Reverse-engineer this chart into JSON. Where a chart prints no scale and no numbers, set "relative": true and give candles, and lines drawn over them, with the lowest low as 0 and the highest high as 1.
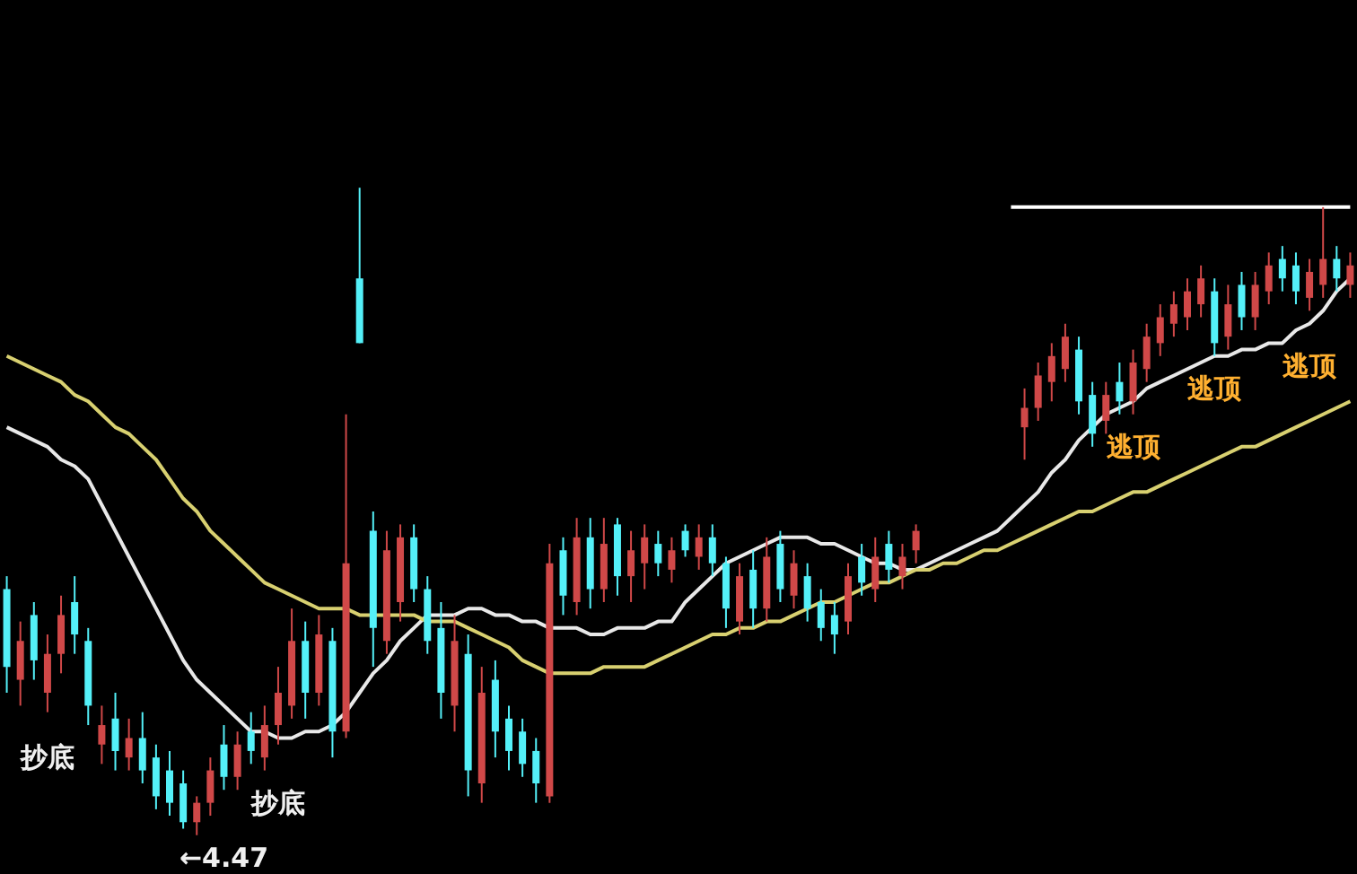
{
  "chart_data": {
    "type": "candlestick",
    "relative": true,
    "categories": [
      null,
      null,
      null,
      null,
      null,
      null,
      null,
      null,
      null,
      null,
      null,
      null,
      null,
      null,
      null,
      null,
      null,
      null,
      null,
      null,
      null,
      null,
      null,
      null,
      null,
      null,
      null,
      null,
      null,
      null,
      null,
      null,
      null,
      null,
      null,
      null,
      null,
      null,
      null,
      null,
      null,
      null,
      null,
      null,
      null,
      null,
      null,
      null,
      null,
      null,
      null,
      null,
      null,
      null,
      null,
      null,
      null,
      null,
      null,
      null,
      null,
      null,
      null,
      null,
      null,
      null,
      null,
      null,
      null,
      null,
      null,
      null,
      null,
      null,
      null,
      null,
      null,
      null,
      null,
      null,
      null,
      null,
      null,
      null,
      null,
      null,
      null,
      null,
      null,
      null,
      null,
      null,
      null,
      null,
      null,
      null,
      null,
      null,
      null,
      null
    ],
    "ohlc": [
      [
        0.38,
        0.4,
        0.22,
        0.26
      ],
      [
        0.24,
        0.33,
        0.2,
        0.3
      ],
      [
        0.34,
        0.36,
        0.24,
        0.27
      ],
      [
        0.22,
        0.31,
        0.19,
        0.28
      ],
      [
        0.28,
        0.37,
        0.25,
        0.34
      ],
      [
        0.36,
        0.4,
        0.28,
        0.31
      ],
      [
        0.3,
        0.32,
        0.17,
        0.2
      ],
      [
        0.14,
        0.2,
        0.11,
        0.17
      ],
      [
        0.18,
        0.22,
        0.1,
        0.13
      ],
      [
        0.12,
        0.18,
        0.1,
        0.15
      ],
      [
        0.15,
        0.19,
        0.08,
        0.1
      ],
      [
        0.12,
        0.14,
        0.04,
        0.06
      ],
      [
        0.1,
        0.13,
        0.03,
        0.05
      ],
      [
        0.08,
        0.1,
        0.01,
        0.02
      ],
      [
        0.02,
        0.06,
        0,
        0.05
      ],
      [
        0.05,
        0.12,
        0.03,
        0.1
      ],
      [
        0.14,
        0.17,
        0.07,
        0.09
      ],
      [
        0.09,
        0.16,
        0.07,
        0.14
      ],
      [
        0.16,
        0.19,
        0.11,
        0.13
      ],
      [
        0.12,
        0.2,
        0.1,
        0.17
      ],
      [
        0.17,
        0.26,
        0.14,
        0.22
      ],
      [
        0.2,
        0.35,
        0.18,
        0.3
      ],
      [
        0.3,
        0.33,
        0.18,
        0.22
      ],
      [
        0.22,
        0.34,
        0.2,
        0.31
      ],
      [
        0.3,
        0.32,
        0.12,
        0.16
      ],
      [
        0.16,
        0.65,
        0.15,
        0.42
      ],
      [
        0.86,
        1,
        0.76,
        0.76
      ],
      [
        0.47,
        0.5,
        0.26,
        0.32
      ],
      [
        0.3,
        0.47,
        0.28,
        0.44
      ],
      [
        0.36,
        0.48,
        0.33,
        0.46
      ],
      [
        0.46,
        0.48,
        0.36,
        0.38
      ],
      [
        0.38,
        0.4,
        0.28,
        0.3
      ],
      [
        0.32,
        0.36,
        0.18,
        0.22
      ],
      [
        0.2,
        0.34,
        0.16,
        0.3
      ],
      [
        0.28,
        0.31,
        0.06,
        0.1
      ],
      [
        0.08,
        0.26,
        0.05,
        0.22
      ],
      [
        0.24,
        0.27,
        0.12,
        0.16
      ],
      [
        0.18,
        0.2,
        0.1,
        0.13
      ],
      [
        0.16,
        0.18,
        0.09,
        0.11
      ],
      [
        0.13,
        0.15,
        0.05,
        0.08
      ],
      [
        0.06,
        0.45,
        0.05,
        0.42
      ],
      [
        0.44,
        0.46,
        0.34,
        0.37
      ],
      [
        0.36,
        0.49,
        0.34,
        0.46
      ],
      [
        0.46,
        0.49,
        0.35,
        0.38
      ],
      [
        0.38,
        0.49,
        0.36,
        0.45
      ],
      [
        0.48,
        0.49,
        0.37,
        0.4
      ],
      [
        0.4,
        0.47,
        0.36,
        0.44
      ],
      [
        0.42,
        0.48,
        0.38,
        0.46
      ],
      [
        0.45,
        0.47,
        0.4,
        0.42
      ],
      [
        0.41,
        0.46,
        0.39,
        0.44
      ],
      [
        0.47,
        0.48,
        0.43,
        0.44
      ],
      [
        0.43,
        0.48,
        0.41,
        0.46
      ],
      [
        0.46,
        0.48,
        0.4,
        0.42
      ],
      [
        0.42,
        0.43,
        0.32,
        0.35
      ],
      [
        0.33,
        0.42,
        0.31,
        0.4
      ],
      [
        0.41,
        0.44,
        0.32,
        0.35
      ],
      [
        0.35,
        0.46,
        0.33,
        0.43
      ],
      [
        0.45,
        0.47,
        0.36,
        0.38
      ],
      [
        0.37,
        0.44,
        0.35,
        0.42
      ],
      [
        0.4,
        0.42,
        0.33,
        0.35
      ],
      [
        0.36,
        0.38,
        0.3,
        0.32
      ],
      [
        0.34,
        0.36,
        0.28,
        0.31
      ],
      [
        0.33,
        0.42,
        0.31,
        0.4
      ],
      [
        0.43,
        0.45,
        0.37,
        0.39
      ],
      [
        0.38,
        0.46,
        0.36,
        0.43
      ],
      [
        0.45,
        0.47,
        0.39,
        0.41
      ],
      [
        0.4,
        0.45,
        0.38,
        0.43
      ],
      [
        0.44,
        0.48,
        0.42,
        0.47
      ],
      null,
      null,
      null,
      null,
      null,
      null,
      null,
      [
        0.63,
        0.69,
        0.58,
        0.66
      ],
      [
        0.66,
        0.73,
        0.64,
        0.71
      ],
      [
        0.7,
        0.76,
        0.67,
        0.74
      ],
      [
        0.72,
        0.79,
        0.7,
        0.77
      ],
      [
        0.75,
        0.77,
        0.65,
        0.67
      ],
      [
        0.68,
        0.7,
        0.6,
        0.62
      ],
      [
        0.64,
        0.7,
        0.62,
        0.68
      ],
      [
        0.7,
        0.73,
        0.65,
        0.67
      ],
      [
        0.67,
        0.75,
        0.65,
        0.73
      ],
      [
        0.72,
        0.79,
        0.7,
        0.77
      ],
      [
        0.76,
        0.82,
        0.74,
        0.8
      ],
      [
        0.79,
        0.84,
        0.77,
        0.82
      ],
      [
        0.8,
        0.86,
        0.78,
        0.84
      ],
      [
        0.82,
        0.88,
        0.8,
        0.86
      ],
      [
        0.84,
        0.86,
        0.74,
        0.76
      ],
      [
        0.77,
        0.85,
        0.75,
        0.82
      ],
      [
        0.85,
        0.87,
        0.78,
        0.8
      ],
      [
        0.8,
        0.87,
        0.78,
        0.85
      ],
      [
        0.84,
        0.9,
        0.82,
        0.88
      ],
      [
        0.89,
        0.91,
        0.84,
        0.86
      ],
      [
        0.88,
        0.9,
        0.82,
        0.84
      ],
      [
        0.83,
        0.89,
        0.81,
        0.87
      ],
      [
        0.85,
        0.97,
        0.83,
        0.89
      ],
      [
        0.89,
        0.91,
        0.84,
        0.86
      ],
      [
        0.85,
        0.9,
        0.83,
        0.88
      ]
    ],
    "series": [
      {
        "type": "line",
        "color": "#e8e8e8",
        "values": [
          0.63,
          0.62,
          0.61,
          0.6,
          0.58,
          0.57,
          0.55,
          0.51,
          0.47,
          0.43,
          0.39,
          0.35,
          0.31,
          0.27,
          0.24,
          0.22,
          0.2,
          0.18,
          0.16,
          0.16,
          0.15,
          0.15,
          0.16,
          0.16,
          0.17,
          0.19,
          0.22,
          0.25,
          0.27,
          0.3,
          0.32,
          0.34,
          0.34,
          0.34,
          0.35,
          0.35,
          0.34,
          0.34,
          0.33,
          0.33,
          0.32,
          0.32,
          0.32,
          0.31,
          0.31,
          0.32,
          0.32,
          0.32,
          0.33,
          0.33,
          0.36,
          0.38,
          0.4,
          0.42,
          0.43,
          0.44,
          0.45,
          0.46,
          0.46,
          0.46,
          0.45,
          0.45,
          0.44,
          0.43,
          0.42,
          0.42,
          0.41,
          0.41,
          0.42,
          0.43,
          0.44,
          0.45,
          0.46,
          0.47,
          0.49,
          0.51,
          0.53,
          0.56,
          0.58,
          0.61,
          0.63,
          0.65,
          0.66,
          0.67,
          0.69,
          0.7,
          0.71,
          0.72,
          0.73,
          0.74,
          0.74,
          0.75,
          0.75,
          0.76,
          0.76,
          0.78,
          0.79,
          0.81,
          0.84,
          0.86
        ]
      },
      {
        "type": "line",
        "color": "#d8d070",
        "values": [
          0.74,
          0.73,
          0.72,
          0.71,
          0.7,
          0.68,
          0.67,
          0.65,
          0.63,
          0.62,
          0.6,
          0.58,
          0.55,
          0.52,
          0.5,
          0.47,
          0.45,
          0.43,
          0.41,
          0.39,
          0.38,
          0.37,
          0.36,
          0.35,
          0.35,
          0.35,
          0.34,
          0.34,
          0.34,
          0.34,
          0.34,
          0.33,
          0.33,
          0.33,
          0.32,
          0.31,
          0.3,
          0.29,
          0.27,
          0.26,
          0.25,
          0.25,
          0.25,
          0.25,
          0.26,
          0.26,
          0.26,
          0.26,
          0.27,
          0.28,
          0.29,
          0.3,
          0.31,
          0.31,
          0.32,
          0.32,
          0.33,
          0.33,
          0.34,
          0.35,
          0.36,
          0.36,
          0.37,
          0.38,
          0.39,
          0.39,
          0.4,
          0.41,
          0.41,
          0.42,
          0.42,
          0.43,
          0.44,
          0.44,
          0.45,
          0.46,
          0.47,
          0.48,
          0.49,
          0.5,
          0.5,
          0.51,
          0.52,
          0.53,
          0.53,
          0.54,
          0.55,
          0.56,
          0.57,
          0.58,
          0.59,
          0.6,
          0.6,
          0.61,
          0.62,
          0.63,
          0.64,
          0.65,
          0.66,
          0.67
        ]
      },
      {
        "type": "line",
        "color": "#ffffff",
        "values": [
          null,
          null,
          null,
          null,
          null,
          null,
          null,
          null,
          null,
          null,
          null,
          null,
          null,
          null,
          null,
          null,
          null,
          null,
          null,
          null,
          null,
          null,
          null,
          null,
          null,
          null,
          null,
          null,
          null,
          null,
          null,
          null,
          null,
          null,
          null,
          null,
          null,
          null,
          null,
          null,
          null,
          null,
          null,
          null,
          null,
          null,
          null,
          null,
          null,
          null,
          null,
          null,
          null,
          null,
          null,
          null,
          null,
          null,
          null,
          null,
          null,
          null,
          null,
          null,
          null,
          null,
          null,
          null,
          null,
          null,
          null,
          null,
          null,
          null,
          0.97,
          0.97,
          0.97,
          0.97,
          0.97,
          0.97,
          0.97,
          0.97,
          0.97,
          0.97,
          0.97,
          0.97,
          0.97,
          0.97,
          0.97,
          0.97,
          0.97,
          0.97,
          0.97,
          0.97,
          0.97,
          0.97,
          0.97,
          0.97,
          0.97,
          0.97
        ]
      }
    ],
    "annotations": [
      "抄底",
      "抄底",
      "←4.47",
      "逃顶",
      "逃顶",
      "逃顶"
    ]
  }
}
